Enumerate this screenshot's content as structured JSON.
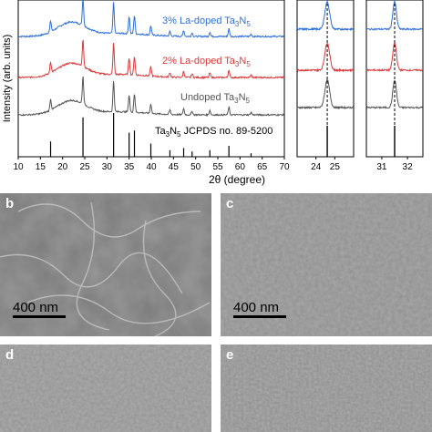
{
  "chart_data": [
    {
      "type": "line",
      "panel": "a-main",
      "xlabel": "2θ (degree)",
      "ylabel": "Intensity (arb. units)",
      "xlim": [
        10,
        70
      ],
      "xticks": [
        10,
        15,
        20,
        25,
        30,
        35,
        40,
        45,
        50,
        55,
        60,
        65,
        70
      ],
      "series": [
        {
          "name": "3% La-doped Ta3N5",
          "color": "#2f6fd6"
        },
        {
          "name": "2% La-doped Ta3N5",
          "color": "#d9393b"
        },
        {
          "name": "Undoped Ta3N5",
          "color": "#555555"
        }
      ],
      "reference": {
        "name": "Ta3N5 JCPDS no. 89-5200",
        "positions": [
          17.3,
          24.6,
          31.5,
          35.0,
          36.2,
          39.9,
          44.2,
          47.3,
          49.2,
          53.2,
          57.5,
          62.5
        ]
      }
    },
    {
      "type": "line",
      "panel": "a-zoom-1",
      "xlim": [
        23,
        26
      ],
      "xticks": [
        24,
        25
      ],
      "reference_line": 24.6
    },
    {
      "type": "line",
      "panel": "a-zoom-2",
      "xlim": [
        30.4,
        32.6
      ],
      "xticks": [
        31,
        32
      ],
      "reference_line": 31.5
    }
  ],
  "legend": {
    "la3_main": "3% La-doped Ta",
    "la3_sub": "3",
    "la3_tail": "N",
    "la3_sub2": "5",
    "la2_main": "2% La-doped Ta",
    "la2_sub": "3",
    "la2_tail": "N",
    "la2_sub2": "5",
    "undoped_main": "Undoped Ta",
    "undoped_sub": "3",
    "undoped_tail": "N",
    "undoped_sub2": "5",
    "ref_main": "Ta",
    "ref_sub": "3",
    "ref_tail": "N",
    "ref_sub2": "5",
    "ref_rest": " JCPDS no. 89-5200"
  },
  "axes": {
    "xlabel": "2θ (degree)",
    "ylabel": "Intensity (arb. units)",
    "main_ticks": [
      "10",
      "15",
      "20",
      "25",
      "30",
      "35",
      "40",
      "45",
      "50",
      "55",
      "60",
      "65",
      "70"
    ],
    "zoom1_ticks": [
      "24",
      "25"
    ],
    "zoom2_ticks": [
      "31",
      "32"
    ]
  },
  "panels": {
    "b": {
      "letter": "b",
      "scale": "400 nm"
    },
    "c": {
      "letter": "c",
      "scale": "400 nm"
    },
    "d": {
      "letter": "d"
    },
    "e": {
      "letter": "e"
    }
  }
}
